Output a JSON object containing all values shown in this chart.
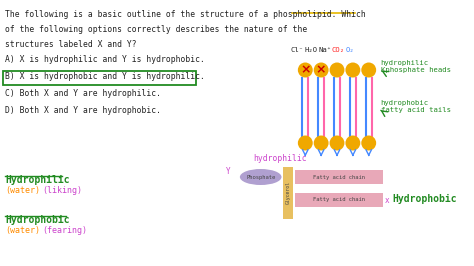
{
  "bg_color": "#ffffff",
  "title_color": "#222222",
  "phospholipid_underline_color": "#e6b800",
  "options": [
    "A) X is hydrophilic and Y is hydrophobic.",
    "B) X is hydrophobic and Y is hydrophilic.",
    "C) Both X and Y are hydrophilic.",
    "D) Both X and Y are hydrophobic."
  ],
  "options_color": "#222222",
  "correct_option_box_color": "#228B22",
  "correct_option_index": 1,
  "hydrophilic_label_color": "#cc44cc",
  "hydrophobic_label_color": "#228B22",
  "hydrophilic_word_color": "#228B22",
  "hydrophilic_water_color": "#ff8c00",
  "hydrophobic_word_color": "#228B22",
  "hydrophobic_water_color": "#ff8c00",
  "hydrophilic_liking_color": "#cc44cc",
  "hydrophobic_fearing_color": "#cc44cc",
  "phosphate_ellipse_color": "#b0a0d0",
  "glycerol_rect_color": "#e8c060",
  "fatty_acid_rect_color": "#e8a8b8",
  "bilayer_head_color": "#f0a800",
  "bilayer_line_blue": "#4488ff",
  "bilayer_line_pink": "#ff66aa",
  "bilayer_label_color": "#228B22",
  "x_label_color": "#cc44cc",
  "y_label_color": "#cc44cc",
  "red_color": "#cc0000",
  "co2_color": "#ff2222",
  "o2_color": "#4488ff"
}
